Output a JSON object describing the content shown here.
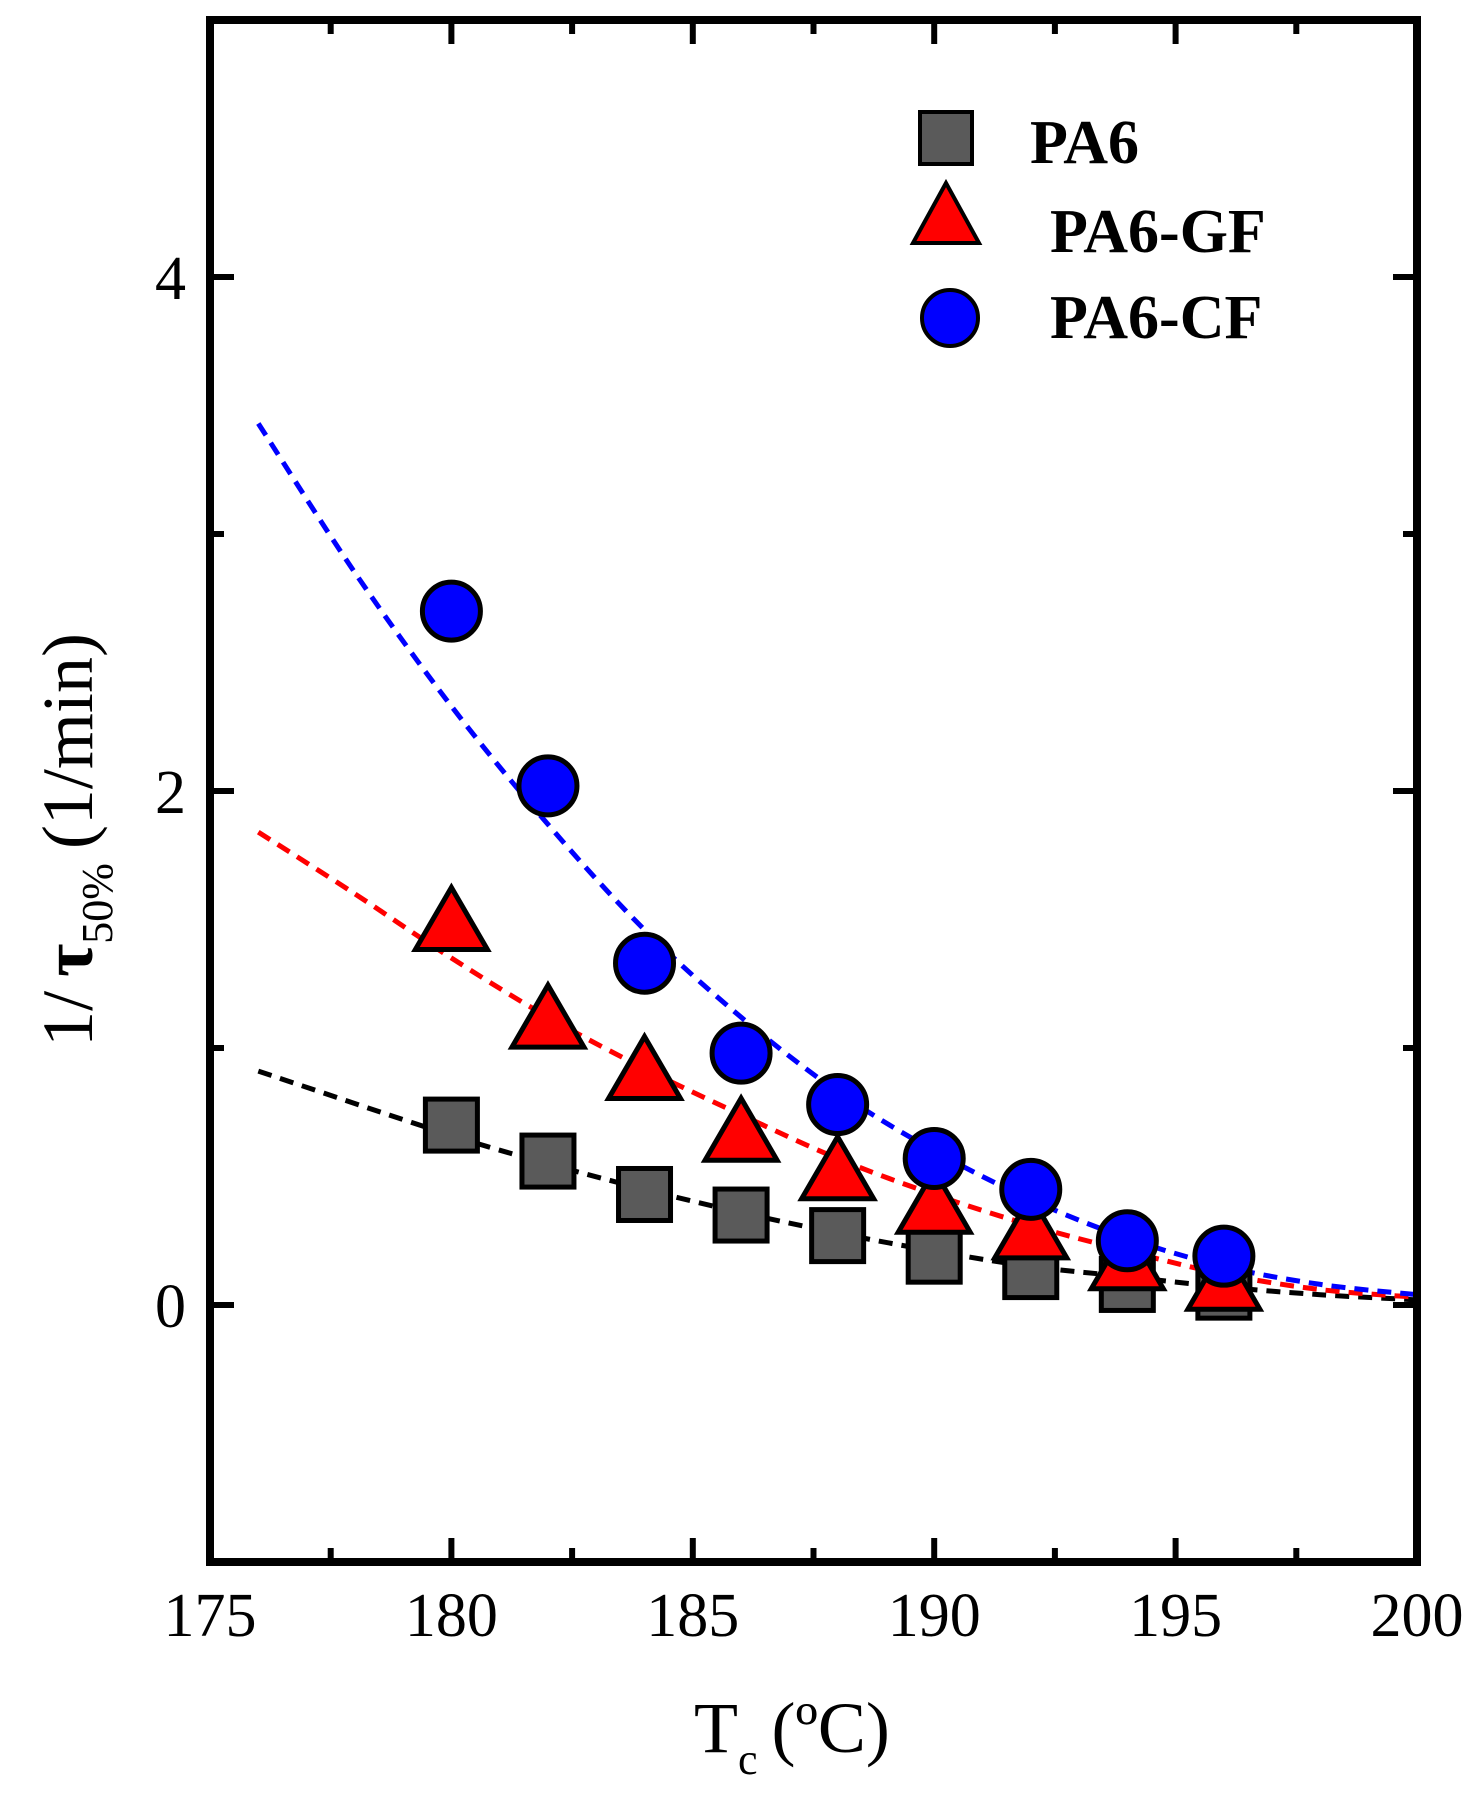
{
  "chart_data": {
    "type": "scatter",
    "title": "",
    "xlabel": {
      "main": "T",
      "sub": "c",
      "unit": "(ºC)"
    },
    "ylabel": {
      "prefix": "1/",
      "symbol": "τ",
      "sub": "50%",
      "unit": "(1/min)"
    },
    "xlim": [
      175,
      200
    ],
    "ylim": [
      -1,
      5
    ],
    "x_ticks": [
      175,
      180,
      185,
      190,
      195,
      200
    ],
    "y_ticks": [
      0,
      2,
      4
    ],
    "x_tick_labels": [
      "175",
      "180",
      "185",
      "190",
      "195",
      "200"
    ],
    "y_tick_labels": [
      "0",
      "2",
      "4"
    ],
    "legend_position": "top-right",
    "series": [
      {
        "name": "PA6",
        "marker": "square",
        "color": "#5a5a5a",
        "fit_color": "#000000",
        "x": [
          180,
          182,
          184,
          186,
          188,
          190,
          192,
          194,
          196
        ],
        "y": [
          0.7,
          0.56,
          0.43,
          0.35,
          0.27,
          0.19,
          0.13,
          0.08,
          0.05
        ],
        "fit": {
          "x": [
            176,
            180,
            182,
            184,
            186,
            188,
            190,
            192,
            194,
            196,
            198,
            200
          ],
          "y": [
            0.91,
            0.66,
            0.55,
            0.45,
            0.36,
            0.28,
            0.21,
            0.15,
            0.11,
            0.07,
            0.04,
            0.02
          ]
        }
      },
      {
        "name": "PA6-GF",
        "marker": "triangle",
        "color": "#ff0000",
        "fit_color": "#ff0000",
        "x": [
          180,
          182,
          184,
          186,
          188,
          190,
          192,
          194,
          196
        ],
        "y": [
          1.5,
          1.12,
          0.92,
          0.68,
          0.53,
          0.4,
          0.3,
          0.18,
          0.1
        ],
        "fit": {
          "x": [
            176,
            178,
            180,
            182,
            184,
            186,
            188,
            190,
            192,
            194,
            196,
            198,
            200
          ],
          "y": [
            1.84,
            1.6,
            1.35,
            1.12,
            0.92,
            0.74,
            0.57,
            0.43,
            0.31,
            0.21,
            0.12,
            0.06,
            0.03
          ]
        }
      },
      {
        "name": "PA6-CF",
        "marker": "circle",
        "color": "#0000ff",
        "fit_color": "#0000ff",
        "x": [
          180,
          182,
          184,
          186,
          188,
          190,
          192,
          194,
          196
        ],
        "y": [
          2.7,
          2.02,
          1.33,
          0.98,
          0.78,
          0.57,
          0.45,
          0.25,
          0.19
        ],
        "fit": {
          "x": [
            176,
            178,
            180,
            182,
            184,
            186,
            188,
            190,
            192,
            194,
            196,
            198,
            200
          ],
          "y": [
            3.43,
            2.85,
            2.33,
            1.87,
            1.46,
            1.12,
            0.83,
            0.6,
            0.41,
            0.26,
            0.15,
            0.08,
            0.04
          ]
        }
      }
    ]
  }
}
